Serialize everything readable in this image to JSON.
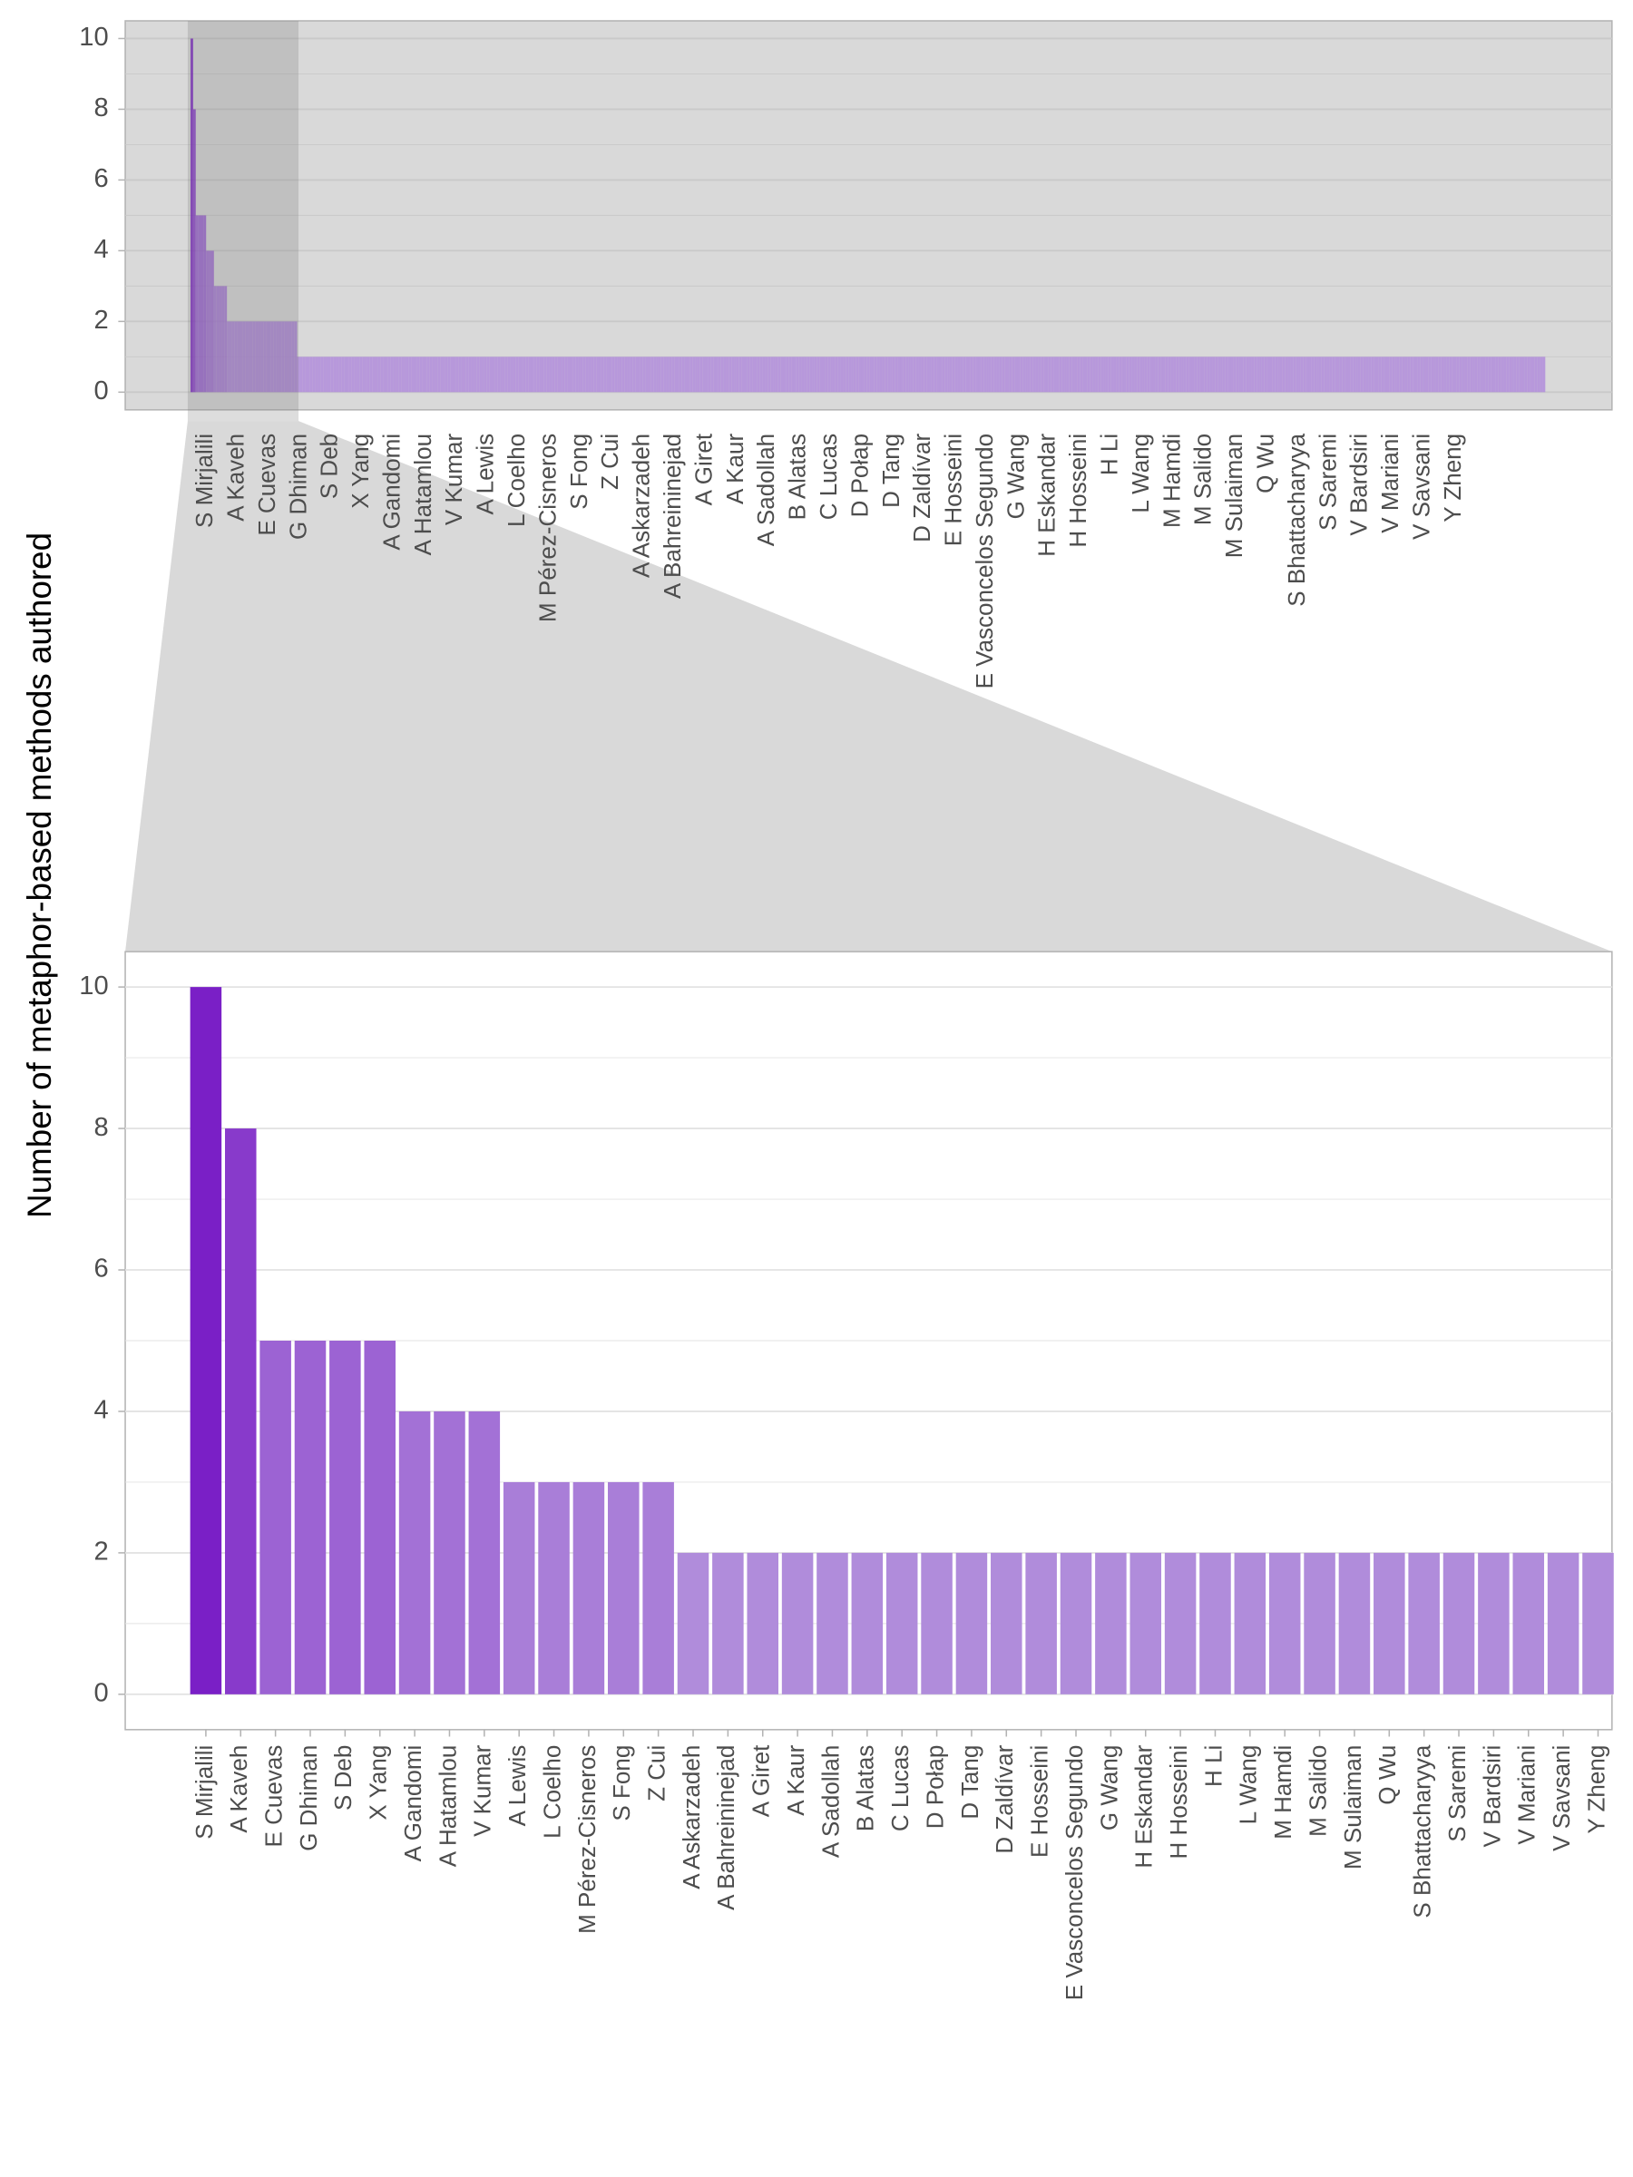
{
  "chart_data": [
    {
      "type": "bar",
      "y_label": "Number of metaphor-based methods authored",
      "categories": [
        "S Mirjalili",
        "A Kaveh",
        "E Cuevas",
        "G Dhiman",
        "S Deb",
        "X Yang",
        "A Gandomi",
        "A Hatamlou",
        "V Kumar",
        "A Lewis",
        "L Coelho",
        "M Pérez-Cisneros",
        "S Fong",
        "Z Cui",
        "A Askarzadeh",
        "A Bahreininejad",
        "A Giret",
        "A Kaur",
        "A Sadollah",
        "B Alatas",
        "C Lucas",
        "D Połap",
        "D Tang",
        "D Zaldívar",
        "E Hosseini",
        "E Vasconcelos Segundo",
        "G Wang",
        "H Eskandar",
        "H Hosseini",
        "H Li",
        "L Wang",
        "M Hamdi",
        "M Salido",
        "M Sulaiman",
        "Q Wu",
        "S Bhattacharyya",
        "S Saremi",
        "V Bardsiri",
        "V Mariani",
        "V Savsani",
        "Y Zheng",
        null,
        null,
        null,
        null,
        null,
        null,
        null,
        null,
        null,
        null,
        null,
        null,
        null,
        null,
        null,
        null,
        null,
        null,
        null,
        null,
        null,
        null,
        null,
        null,
        null,
        null,
        null,
        null,
        null,
        null,
        null,
        null,
        null,
        null,
        null,
        null,
        null,
        null,
        null,
        null,
        null,
        null,
        null,
        null,
        null,
        null,
        null,
        null,
        null,
        null,
        null,
        null,
        null,
        null,
        null,
        null,
        null,
        null,
        null,
        null,
        null,
        null,
        null,
        null,
        null,
        null,
        null,
        null,
        null,
        null,
        null,
        null,
        null,
        null,
        null,
        null,
        null,
        null,
        null,
        null,
        null,
        null,
        null,
        null,
        null,
        null,
        null,
        null,
        null,
        null,
        null,
        null,
        null,
        null,
        null,
        null,
        null,
        null,
        null,
        null,
        null,
        null,
        null,
        null,
        null,
        null,
        null,
        null,
        null,
        null,
        null,
        null,
        null,
        null,
        null,
        null,
        null,
        null,
        null,
        null,
        null,
        null,
        null,
        null,
        null,
        null,
        null,
        null,
        null,
        null,
        null,
        null,
        null,
        null,
        null,
        null,
        null,
        null,
        null,
        null,
        null,
        null,
        null,
        null,
        null,
        null,
        null,
        null,
        null,
        null,
        null,
        null,
        null,
        null,
        null,
        null,
        null,
        null,
        null,
        null,
        null,
        null,
        null,
        null,
        null,
        null,
        null,
        null,
        null,
        null,
        null,
        null,
        null,
        null,
        null,
        null,
        null,
        null,
        null,
        null,
        null,
        null,
        null,
        null,
        null,
        null,
        null,
        null,
        null,
        null,
        null,
        null,
        null,
        null,
        null,
        null,
        null,
        null,
        null,
        null,
        null,
        null,
        null,
        null,
        null,
        null,
        null,
        null,
        null,
        null,
        null,
        null,
        null,
        null,
        null,
        null,
        null,
        null,
        null,
        null,
        null,
        null,
        null,
        null,
        null,
        null,
        null,
        null,
        null,
        null,
        null,
        null,
        null,
        null,
        null,
        null,
        null,
        null,
        null,
        null,
        null,
        null,
        null,
        null,
        null,
        null,
        null,
        null,
        null,
        null,
        null,
        null,
        null,
        null,
        null,
        null,
        null,
        null,
        null,
        null,
        null,
        null,
        null,
        null,
        null,
        null,
        null,
        null,
        null,
        null,
        null,
        null,
        null,
        null,
        null,
        null,
        null,
        null,
        null,
        null,
        null,
        null,
        null,
        null,
        null,
        null,
        null,
        null,
        null,
        null,
        null,
        null,
        null,
        null,
        null,
        null,
        null,
        null,
        null,
        null,
        null,
        null,
        null,
        null,
        null,
        null,
        null,
        null,
        null,
        null,
        null,
        null,
        null,
        null,
        null,
        null,
        null,
        null,
        null,
        null,
        null,
        null,
        null,
        null,
        null,
        null,
        null,
        null,
        null,
        null,
        null,
        null,
        null,
        null,
        null,
        null,
        null,
        null,
        null,
        null,
        null,
        null,
        null,
        null,
        null,
        null,
        null,
        null,
        null,
        null,
        null,
        null,
        null,
        null,
        null,
        null,
        null,
        null,
        null,
        null,
        null,
        null,
        null,
        null,
        null,
        null,
        null,
        null,
        null,
        null,
        null,
        null,
        null,
        null,
        null,
        null,
        null,
        null,
        null,
        null,
        null,
        null,
        null,
        null,
        null,
        null,
        null,
        null,
        null,
        null,
        null,
        null,
        null,
        null,
        null,
        null,
        null,
        null,
        null,
        null,
        null,
        null,
        null,
        null,
        null,
        null,
        null,
        null,
        null,
        null,
        null,
        null,
        null,
        null,
        null,
        null,
        null,
        null,
        null,
        null,
        null,
        null,
        null,
        null,
        null,
        null,
        null,
        null,
        null,
        null,
        null,
        null,
        null,
        null,
        null,
        null,
        null,
        null,
        null,
        null,
        null,
        null,
        null,
        null,
        null,
        null,
        null,
        null,
        null,
        null,
        null,
        null,
        null,
        null,
        null,
        null,
        null,
        null,
        null,
        null,
        null,
        null,
        null,
        null,
        null,
        null,
        null,
        null,
        null,
        null,
        null,
        null,
        null,
        null,
        null,
        null,
        null,
        null,
        null,
        null
      ],
      "values": [
        10,
        8,
        5,
        5,
        5,
        5,
        4,
        4,
        4,
        3,
        3,
        3,
        3,
        3,
        2,
        2,
        2,
        2,
        2,
        2,
        2,
        2,
        2,
        2,
        2,
        2,
        2,
        2,
        2,
        2,
        2,
        2,
        2,
        2,
        2,
        2,
        2,
        2,
        2,
        2,
        2,
        1,
        1,
        1,
        1,
        1,
        1,
        1,
        1,
        1,
        1,
        1,
        1,
        1,
        1,
        1,
        1,
        1,
        1,
        1,
        1,
        1,
        1,
        1,
        1,
        1,
        1,
        1,
        1,
        1,
        1,
        1,
        1,
        1,
        1,
        1,
        1,
        1,
        1,
        1,
        1,
        1,
        1,
        1,
        1,
        1,
        1,
        1,
        1,
        1,
        1,
        1,
        1,
        1,
        1,
        1,
        1,
        1,
        1,
        1,
        1,
        1,
        1,
        1,
        1,
        1,
        1,
        1,
        1,
        1,
        1,
        1,
        1,
        1,
        1,
        1,
        1,
        1,
        1,
        1,
        1,
        1,
        1,
        1,
        1,
        1,
        1,
        1,
        1,
        1,
        1,
        1,
        1,
        1,
        1,
        1,
        1,
        1,
        1,
        1,
        1,
        1,
        1,
        1,
        1,
        1,
        1,
        1,
        1,
        1,
        1,
        1,
        1,
        1,
        1,
        1,
        1,
        1,
        1,
        1,
        1,
        1,
        1,
        1,
        1,
        1,
        1,
        1,
        1,
        1,
        1,
        1,
        1,
        1,
        1,
        1,
        1,
        1,
        1,
        1,
        1,
        1,
        1,
        1,
        1,
        1,
        1,
        1,
        1,
        1,
        1,
        1,
        1,
        1,
        1,
        1,
        1,
        1,
        1,
        1,
        1,
        1,
        1,
        1,
        1,
        1,
        1,
        1,
        1,
        1,
        1,
        1,
        1,
        1,
        1,
        1,
        1,
        1,
        1,
        1,
        1,
        1,
        1,
        1,
        1,
        1,
        1,
        1,
        1,
        1,
        1,
        1,
        1,
        1,
        1,
        1,
        1,
        1,
        1,
        1,
        1,
        1,
        1,
        1,
        1,
        1,
        1,
        1,
        1,
        1,
        1,
        1,
        1,
        1,
        1,
        1,
        1,
        1,
        1,
        1,
        1,
        1,
        1,
        1,
        1,
        1,
        1,
        1,
        1,
        1,
        1,
        1,
        1,
        1,
        1,
        1,
        1,
        1,
        1,
        1,
        1,
        1,
        1,
        1,
        1,
        1,
        1,
        1,
        1,
        1,
        1,
        1,
        1,
        1,
        1,
        1,
        1,
        1,
        1,
        1,
        1,
        1,
        1,
        1,
        1,
        1,
        1,
        1,
        1,
        1,
        1,
        1,
        1,
        1,
        1,
        1,
        1,
        1,
        1,
        1,
        1,
        1,
        1,
        1,
        1,
        1,
        1,
        1,
        1,
        1,
        1,
        1,
        1,
        1,
        1,
        1,
        1,
        1,
        1,
        1,
        1,
        1,
        1,
        1,
        1,
        1,
        1,
        1,
        1,
        1,
        1,
        1,
        1,
        1,
        1,
        1,
        1,
        1,
        1,
        1,
        1,
        1,
        1,
        1,
        1,
        1,
        1,
        1,
        1,
        1,
        1,
        1,
        1,
        1,
        1,
        1,
        1,
        1,
        1,
        1,
        1,
        1,
        1,
        1,
        1,
        1,
        1,
        1,
        1,
        1,
        1,
        1,
        1,
        1,
        1,
        1,
        1,
        1,
        1,
        1,
        1,
        1,
        1,
        1,
        1,
        1,
        1,
        1,
        1,
        1,
        1,
        1,
        1,
        1,
        1,
        1,
        1,
        1,
        1,
        1,
        1,
        1,
        1,
        1,
        1,
        1,
        1,
        1,
        1,
        1,
        1,
        1,
        1,
        1,
        1,
        1,
        1,
        1,
        1,
        1,
        1,
        1,
        1,
        1,
        1,
        1,
        1,
        1,
        1,
        1,
        1,
        1,
        1,
        1,
        1,
        1,
        1,
        1,
        1,
        1,
        1,
        1,
        1,
        1,
        1,
        1,
        1,
        1,
        1,
        1,
        1,
        1,
        1,
        1,
        1,
        1,
        1,
        1,
        1,
        1,
        1,
        1,
        1,
        1,
        1,
        1,
        1,
        1,
        1,
        1,
        1,
        1,
        1,
        1,
        1,
        1,
        1,
        1,
        1,
        1,
        1,
        1,
        1,
        1,
        1,
        1,
        1,
        1,
        1,
        1,
        1,
        1,
        1,
        1,
        1,
        1,
        1,
        1,
        1,
        1,
        1
      ],
      "color_scale": [
        "#b08cdb",
        "#7a1fc6"
      ],
      "panel_background": "#d9d9d9",
      "grid_color": "#c9c9c9",
      "ylim": [
        -0.5,
        10.5
      ],
      "yticks": [
        0,
        2,
        4,
        6,
        8,
        10
      ],
      "minor_yticks": [
        1,
        3,
        5,
        7,
        9
      ],
      "grid": true
    },
    {
      "type": "bar",
      "categories": [
        "S Mirjalili",
        "A Kaveh",
        "E Cuevas",
        "G Dhiman",
        "S Deb",
        "X Yang",
        "A Gandomi",
        "A Hatamlou",
        "V Kumar",
        "A Lewis",
        "L Coelho",
        "M Pérez-Cisneros",
        "S Fong",
        "Z Cui",
        "A Askarzadeh",
        "A Bahreininejad",
        "A Giret",
        "A Kaur",
        "A Sadollah",
        "B Alatas",
        "C Lucas",
        "D Połap",
        "D Tang",
        "D Zaldívar",
        "E Hosseini",
        "E Vasconcelos Segundo",
        "G Wang",
        "H Eskandar",
        "H Hosseini",
        "H Li",
        "L Wang",
        "M Hamdi",
        "M Salido",
        "M Sulaiman",
        "Q Wu",
        "S Bhattacharyya",
        "S Saremi",
        "V Bardsiri",
        "V Mariani",
        "V Savsani",
        "Y Zheng"
      ],
      "values": [
        10,
        8,
        5,
        5,
        5,
        5,
        4,
        4,
        4,
        3,
        3,
        3,
        3,
        3,
        2,
        2,
        2,
        2,
        2,
        2,
        2,
        2,
        2,
        2,
        2,
        2,
        2,
        2,
        2,
        2,
        2,
        2,
        2,
        2,
        2,
        2,
        2,
        2,
        2,
        2,
        2
      ],
      "color_scale": [
        "#b08cdb",
        "#7a1fc6"
      ],
      "panel_background": "#ffffff",
      "grid_color": "#e3e3e3",
      "ylim": [
        -0.5,
        10.5
      ],
      "yticks": [
        0,
        2,
        4,
        6,
        8,
        10
      ],
      "minor_yticks": [
        1,
        3,
        5,
        7,
        9
      ],
      "grid": true
    }
  ]
}
